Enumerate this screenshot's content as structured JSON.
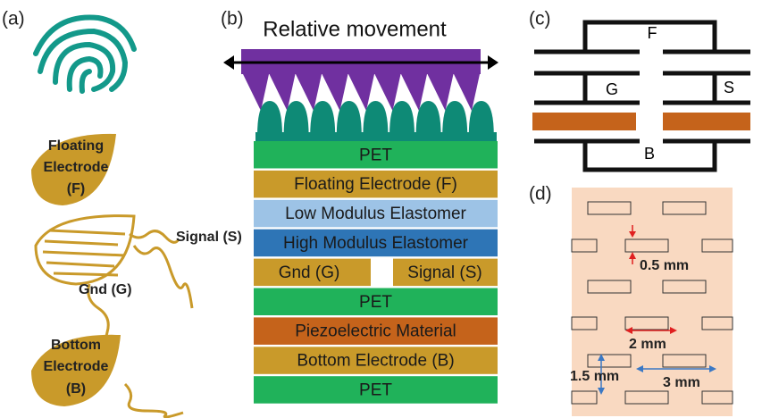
{
  "panels": {
    "a": {
      "label": "(a)",
      "floating_electrode": [
        "Floating",
        "Electrode",
        "(F)"
      ],
      "signal": "Signal (S)",
      "gnd": "Gnd (G)",
      "bottom_electrode": [
        "Bottom",
        "Electrode",
        "(B)"
      ]
    },
    "b": {
      "label": "(b)",
      "movement": "Relative movement",
      "layers": [
        "PET",
        "Floating Electrode (F)",
        "Low Modulus Elastomer",
        "High Modulus Elastomer",
        [
          "Gnd (G)",
          "Signal (S)"
        ],
        "PET",
        "Piezoelectric Material",
        "Bottom Electrode (B)",
        "PET"
      ]
    },
    "c": {
      "label": "(c)",
      "f": "F",
      "g": "G",
      "s": "S",
      "b": "B"
    },
    "d": {
      "label": "(d)",
      "gap": "0.5 mm",
      "length": "2 mm",
      "row_pitch": "1.5 mm",
      "column_pitch": "3 mm"
    }
  }
}
